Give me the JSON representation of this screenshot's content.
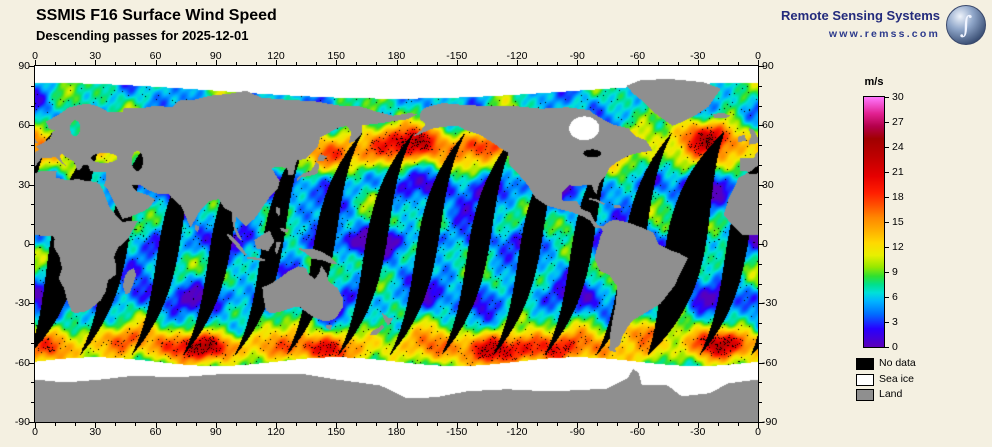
{
  "header": {
    "title": "SSMIS F16 Surface Wind Speed",
    "subtitle": "Descending passes for 2025-12-01"
  },
  "branding": {
    "org": "Remote Sensing Systems",
    "url": "www.remss.com"
  },
  "axes": {
    "lon_ticks": [
      "0",
      "30",
      "60",
      "90",
      "120",
      "150",
      "180",
      "-150",
      "-120",
      "-90",
      "-60",
      "-30",
      "0"
    ],
    "lat_ticks": [
      "90",
      "60",
      "30",
      "0",
      "-30",
      "-60",
      "-90"
    ]
  },
  "colorbar": {
    "unit": "m/s",
    "min": 0,
    "max": 30,
    "tick_values": [
      30,
      27,
      24,
      21,
      18,
      15,
      12,
      9,
      6,
      3,
      0
    ],
    "gradient": [
      {
        "v": 0,
        "c": "#5c00b8"
      },
      {
        "v": 2.2,
        "c": "#2800ff"
      },
      {
        "v": 4,
        "c": "#0070ff"
      },
      {
        "v": 5.5,
        "c": "#00b4ff"
      },
      {
        "v": 6.5,
        "c": "#00e0d8"
      },
      {
        "v": 7.5,
        "c": "#00e08c"
      },
      {
        "v": 8.5,
        "c": "#30e030"
      },
      {
        "v": 9.6,
        "c": "#96e800"
      },
      {
        "v": 11,
        "c": "#e8f000"
      },
      {
        "v": 12.5,
        "c": "#ffd800"
      },
      {
        "v": 14,
        "c": "#ffae00"
      },
      {
        "v": 15.5,
        "c": "#ff8800"
      },
      {
        "v": 17,
        "c": "#ff5000"
      },
      {
        "v": 18.5,
        "c": "#ff1e00"
      },
      {
        "v": 20.5,
        "c": "#e60000"
      },
      {
        "v": 23,
        "c": "#bc0000"
      },
      {
        "v": 25,
        "c": "#a00000"
      },
      {
        "v": 26.5,
        "c": "#b4004b"
      },
      {
        "v": 28,
        "c": "#e12090"
      },
      {
        "v": 30,
        "c": "#ff78ff"
      }
    ]
  },
  "legend": {
    "items": [
      {
        "label": "No data",
        "color": "#000000"
      },
      {
        "label": "Sea ice",
        "color": "#ffffff"
      },
      {
        "label": "Land",
        "color": "#8f8f8f"
      }
    ]
  },
  "map": {
    "land_color": "#8f8f8f",
    "no_data_color": "#000000",
    "sea_ice_color": "#ffffff",
    "background_color": "#f4f0e1"
  }
}
